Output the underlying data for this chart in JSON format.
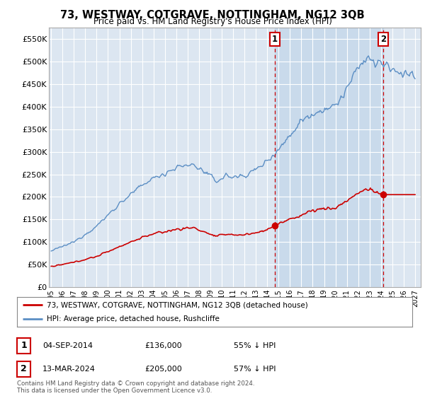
{
  "title": "73, WESTWAY, COTGRAVE, NOTTINGHAM, NG12 3QB",
  "subtitle": "Price paid vs. HM Land Registry's House Price Index (HPI)",
  "background_color": "#ffffff",
  "plot_bg_color": "#dce6f1",
  "grid_color": "#ffffff",
  "ylabel_ticks": [
    "£0",
    "£50K",
    "£100K",
    "£150K",
    "£200K",
    "£250K",
    "£300K",
    "£350K",
    "£400K",
    "£450K",
    "£500K",
    "£550K"
  ],
  "ytick_values": [
    0,
    50000,
    100000,
    150000,
    200000,
    250000,
    300000,
    350000,
    400000,
    450000,
    500000,
    550000
  ],
  "ylim": [
    0,
    575000
  ],
  "xlim_start": 1994.8,
  "xlim_end": 2027.5,
  "xtick_years": [
    1995,
    1996,
    1997,
    1998,
    1999,
    2000,
    2001,
    2002,
    2003,
    2004,
    2005,
    2006,
    2007,
    2008,
    2009,
    2010,
    2011,
    2012,
    2013,
    2014,
    2015,
    2016,
    2017,
    2018,
    2019,
    2020,
    2021,
    2022,
    2023,
    2024,
    2025,
    2026,
    2027
  ],
  "sale1_date": 2014.67,
  "sale1_price": 136000,
  "sale1_label": "1",
  "sale2_date": 2024.2,
  "sale2_price": 205000,
  "sale2_label": "2",
  "hpi_line_color": "#5b8ec4",
  "hpi_fill_color": "#c8d8ee",
  "price_line_color": "#cc0000",
  "vline_color": "#cc0000",
  "annotation_box_color": "#cc0000",
  "legend_label_red": "73, WESTWAY, COTGRAVE, NOTTINGHAM, NG12 3QB (detached house)",
  "legend_label_blue": "HPI: Average price, detached house, Rushcliffe",
  "table_row1": [
    "1",
    "04-SEP-2014",
    "£136,000",
    "55% ↓ HPI"
  ],
  "table_row2": [
    "2",
    "13-MAR-2024",
    "£205,000",
    "57% ↓ HPI"
  ],
  "footer": "Contains HM Land Registry data © Crown copyright and database right 2024.\nThis data is licensed under the Open Government Licence v3.0."
}
